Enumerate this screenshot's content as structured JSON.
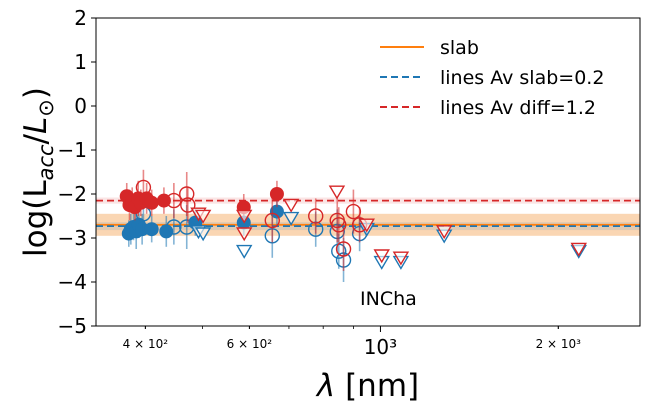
{
  "chart_data": {
    "type": "scatter",
    "xscale": "log",
    "xlabel": "λ [nm]",
    "ylabel": "log(L_acc/L_⊙)",
    "xlim": [
      330,
      2750
    ],
    "ylim": [
      -5,
      2
    ],
    "annotation": "INCha",
    "colors": {
      "blue": "#1f77b4",
      "red": "#d62728",
      "orange": "#ff7f0e",
      "band": "#f8c89a"
    },
    "xticks": [
      {
        "value": 400,
        "label": "4 × 10²"
      },
      {
        "value": 600,
        "label": "6 × 10²"
      },
      {
        "value": 1000,
        "label": "10³"
      },
      {
        "value": 2000,
        "label": "2 × 10³"
      }
    ],
    "yticks": [
      {
        "value": 2,
        "label": "2"
      },
      {
        "value": 1,
        "label": "1"
      },
      {
        "value": 0,
        "label": "0"
      },
      {
        "value": -1,
        "label": "−1"
      },
      {
        "value": -2,
        "label": "−2"
      },
      {
        "value": -3,
        "label": "−3"
      },
      {
        "value": -4,
        "label": "−4"
      },
      {
        "value": -5,
        "label": "−5"
      }
    ],
    "legend": {
      "position": "top-right",
      "entries": [
        {
          "label": "slab",
          "style": "solid",
          "color": "#ff7f0e"
        },
        {
          "label": "lines Av slab=0.2",
          "style": "dashed",
          "color": "#1f77b4"
        },
        {
          "label": "lines Av diff=1.2",
          "style": "dashed",
          "color": "#d62728"
        }
      ]
    },
    "reference_lines": [
      {
        "name": "lines Av slab=0.2",
        "y": -2.73,
        "band": [
          -2.82,
          -2.64
        ],
        "color": "#1f77b4"
      },
      {
        "name": "lines Av diff=1.2",
        "y": -2.15,
        "band": [
          -2.22,
          -2.08
        ],
        "color": "#d62728"
      }
    ],
    "slab": {
      "y": -2.7,
      "band": [
        -2.95,
        -2.45
      ],
      "color": "#ff7f0e"
    },
    "series": [
      {
        "marker_style": "filled",
        "color": "#1f77b4",
        "points": [
          {
            "x": 375,
            "y": -2.9,
            "err": 0.3
          },
          {
            "x": 378,
            "y": -2.8,
            "err": 0.35
          },
          {
            "x": 382,
            "y": -2.75,
            "err": 0.3
          },
          {
            "x": 386,
            "y": -2.85,
            "err": 0.4
          },
          {
            "x": 390,
            "y": -2.7,
            "err": 0.3
          },
          {
            "x": 395,
            "y": -2.8,
            "err": 0.35
          },
          {
            "x": 410,
            "y": -2.8,
            "err": 0.3
          },
          {
            "x": 434,
            "y": -2.85,
            "err": 0.35
          },
          {
            "x": 486,
            "y": -2.65,
            "err": 0.3
          },
          {
            "x": 587,
            "y": -2.65,
            "err": 0.3
          },
          {
            "x": 668,
            "y": -2.4,
            "err": 0.3
          }
        ]
      },
      {
        "marker_style": "open-circle",
        "color": "#1f77b4",
        "points": [
          {
            "x": 397,
            "y": -2.45,
            "err": 0.4
          },
          {
            "x": 447,
            "y": -2.75,
            "err": 0.4
          },
          {
            "x": 470,
            "y": -2.75,
            "err": 0.5
          },
          {
            "x": 656,
            "y": -2.95,
            "err": 0.5
          },
          {
            "x": 777,
            "y": -2.8,
            "err": 0.4
          },
          {
            "x": 845,
            "y": -2.85,
            "err": 0.5
          },
          {
            "x": 850,
            "y": -3.3,
            "err": 0.4
          },
          {
            "x": 866,
            "y": -3.5,
            "err": 0.5
          },
          {
            "x": 922,
            "y": -2.9,
            "err": 0.4
          }
        ]
      },
      {
        "marker_style": "open-triangle",
        "color": "#1f77b4",
        "points": [
          {
            "x": 492,
            "y": -2.85
          },
          {
            "x": 501,
            "y": -2.9
          },
          {
            "x": 588,
            "y": -3.3
          },
          {
            "x": 706,
            "y": -2.55
          },
          {
            "x": 948,
            "y": -2.8
          },
          {
            "x": 1005,
            "y": -3.55
          },
          {
            "x": 1083,
            "y": -3.55
          },
          {
            "x": 1282,
            "y": -2.95
          },
          {
            "x": 2166,
            "y": -3.3
          }
        ]
      },
      {
        "marker_style": "filled",
        "color": "#d62728",
        "points": [
          {
            "x": 372,
            "y": -2.05,
            "err": 0.3
          },
          {
            "x": 376,
            "y": -2.25,
            "err": 0.35
          },
          {
            "x": 380,
            "y": -2.15,
            "err": 0.3
          },
          {
            "x": 384,
            "y": -2.3,
            "err": 0.3
          },
          {
            "x": 389,
            "y": -2.1,
            "err": 0.4
          },
          {
            "x": 393,
            "y": -2.2,
            "err": 0.3
          },
          {
            "x": 402,
            "y": -2.1,
            "err": 0.35
          },
          {
            "x": 410,
            "y": -2.2,
            "err": 0.3
          },
          {
            "x": 430,
            "y": -2.15,
            "err": 0.3
          },
          {
            "x": 587,
            "y": -2.3,
            "err": 0.3
          },
          {
            "x": 668,
            "y": -2.0,
            "err": 0.3
          }
        ]
      },
      {
        "marker_style": "open-circle",
        "color": "#d62728",
        "points": [
          {
            "x": 397,
            "y": -1.85,
            "err": 0.4
          },
          {
            "x": 447,
            "y": -2.15,
            "err": 0.4
          },
          {
            "x": 470,
            "y": -2.0,
            "err": 0.5
          },
          {
            "x": 472,
            "y": -2.25,
            "err": 0.4
          },
          {
            "x": 656,
            "y": -2.6,
            "err": 0.5
          },
          {
            "x": 777,
            "y": -2.5,
            "err": 0.4
          },
          {
            "x": 845,
            "y": -2.6,
            "err": 0.5
          },
          {
            "x": 850,
            "y": -2.7,
            "err": 0.4
          },
          {
            "x": 866,
            "y": -3.25,
            "err": 0.5
          },
          {
            "x": 900,
            "y": -2.4,
            "err": 0.5
          },
          {
            "x": 922,
            "y": -2.7,
            "err": 0.4
          }
        ]
      },
      {
        "marker_style": "open-triangle",
        "color": "#d62728",
        "points": [
          {
            "x": 492,
            "y": -2.45
          },
          {
            "x": 501,
            "y": -2.5
          },
          {
            "x": 588,
            "y": -2.9
          },
          {
            "x": 588,
            "y": -2.5
          },
          {
            "x": 706,
            "y": -2.25
          },
          {
            "x": 844,
            "y": -1.95
          },
          {
            "x": 948,
            "y": -2.7
          },
          {
            "x": 1005,
            "y": -3.4
          },
          {
            "x": 1083,
            "y": -3.45
          },
          {
            "x": 1282,
            "y": -2.85
          },
          {
            "x": 2166,
            "y": -3.25
          }
        ]
      }
    ]
  }
}
